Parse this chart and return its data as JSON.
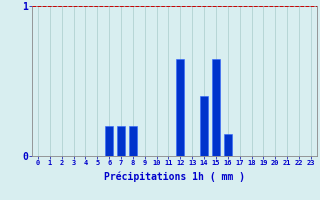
{
  "hours": [
    0,
    1,
    2,
    3,
    4,
    5,
    6,
    7,
    8,
    9,
    10,
    11,
    12,
    13,
    14,
    15,
    16,
    17,
    18,
    19,
    20,
    21,
    22,
    23
  ],
  "values": [
    0,
    0,
    0,
    0,
    0,
    0,
    0.2,
    0.2,
    0.2,
    0,
    0,
    0,
    0.65,
    0,
    0.4,
    0.65,
    0.15,
    0,
    0,
    0,
    0,
    0,
    0,
    0
  ],
  "bar_color": "#0033cc",
  "bar_edge_color": "#3366ff",
  "background_color": "#d8eef0",
  "grid_color": "#aacccc",
  "axis_label_color": "#0000cc",
  "tick_color": "#0000aa",
  "xlabel": "Précipitations 1h ( mm )",
  "ylim": [
    0,
    1.0
  ],
  "yticks": [
    0,
    1
  ],
  "red_line_y": 1.0,
  "red_line_color": "#cc0000"
}
